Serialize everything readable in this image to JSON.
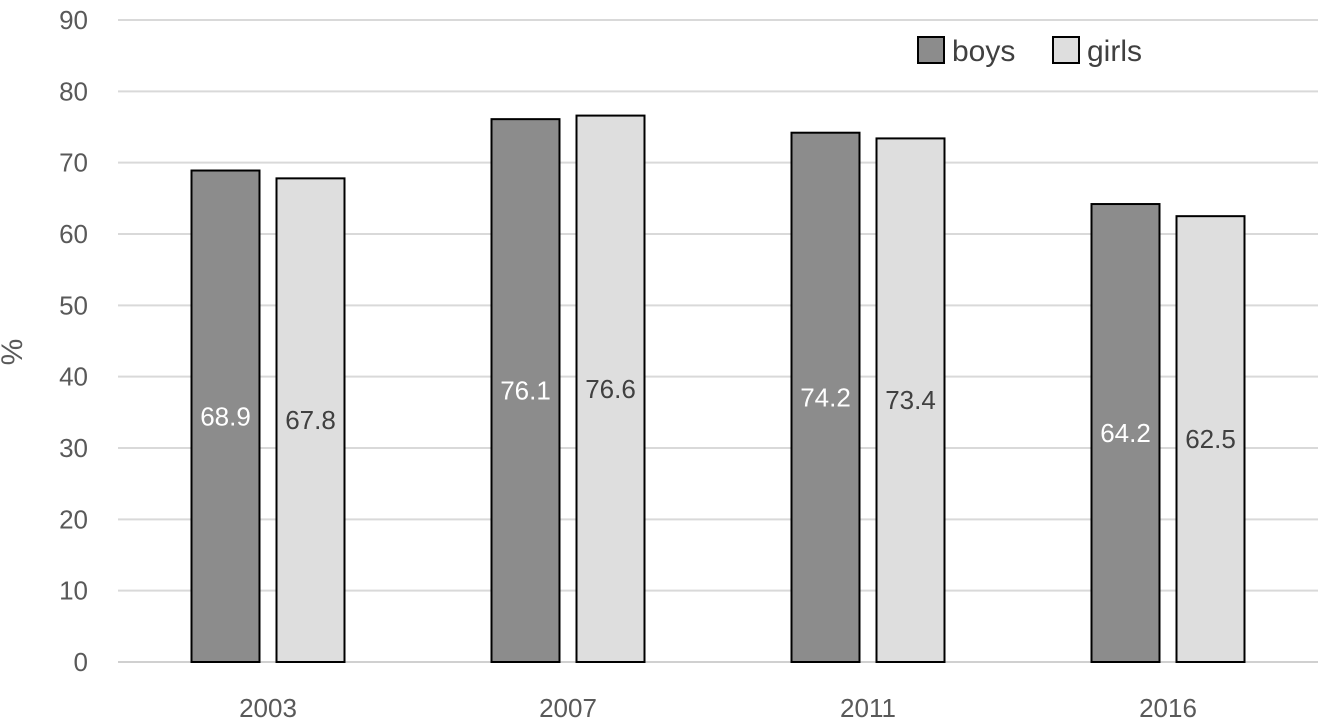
{
  "chart_data": {
    "type": "bar",
    "title": "",
    "xlabel": "",
    "ylabel": "%",
    "categories": [
      "2003",
      "2007",
      "2011",
      "2016"
    ],
    "series": [
      {
        "name": "boys",
        "values": [
          68.9,
          76.1,
          74.2,
          64.2
        ],
        "color": "#8c8c8c",
        "label_color": "#ffffff"
      },
      {
        "name": "girls",
        "values": [
          67.8,
          76.6,
          73.4,
          62.5
        ],
        "color": "#dedede",
        "label_color": "#404040"
      }
    ],
    "data_labels": [
      [
        "68.9",
        "76.1",
        "74.2",
        "64.2"
      ],
      [
        "67.8",
        "76.6",
        "73.4",
        "62.5"
      ]
    ],
    "ylim": [
      0,
      90
    ],
    "yticks": [
      "0",
      "10",
      "20",
      "30",
      "40",
      "50",
      "60",
      "70",
      "80",
      "90"
    ],
    "grid": true,
    "legend_position": "top-right"
  }
}
